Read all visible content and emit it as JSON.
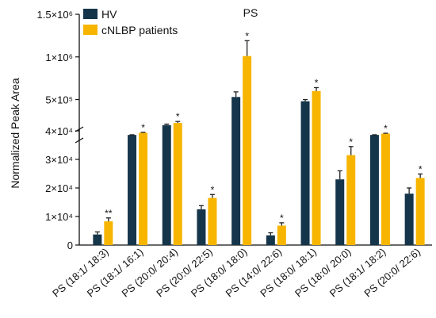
{
  "chart_data": {
    "type": "bar",
    "title": "PS",
    "xlabel": "",
    "ylabel": "Normalized Peak Area",
    "categories": [
      "PS (18:1/ 18:3)",
      "PS (18:1/ 16:1)",
      "PS (20:0/ 20:4)",
      "PS (20:0/ 22:5)",
      "PS (18:0/ 18:0)",
      "PS (14:0/ 22:6)",
      "PS (18:0/ 18:1)",
      "PS (18:0/ 20:0)",
      "PS (18:1/ 18:2)",
      "PS (20:0/ 22:6)"
    ],
    "series": [
      {
        "name": "HV",
        "color": "#15354a",
        "values": [
          3700,
          85000,
          200000,
          12500,
          530000,
          3400,
          480000,
          23000,
          85000,
          18000
        ],
        "errors": [
          900,
          2000,
          12000,
          1300,
          60000,
          900,
          20000,
          3000,
          2000,
          2000
        ]
      },
      {
        "name": "cNLBP patients",
        "color": "#f7b500",
        "values": [
          8300,
          110000,
          225000,
          16500,
          1010000,
          6800,
          600000,
          31500,
          100000,
          23500
        ],
        "errors": [
          1200,
          6000,
          18000,
          1200,
          180000,
          1000,
          40000,
          3000,
          5000,
          1400
        ]
      }
    ],
    "significance": [
      "**",
      "*",
      "*",
      "*",
      "*",
      "*",
      "*",
      "*",
      "*",
      "*"
    ],
    "axis": {
      "lower_range": [
        0,
        40000
      ],
      "lower_ticks": [
        "0",
        "1×10⁴",
        "2×10⁴",
        "3×10⁴",
        "4×10⁴"
      ],
      "upper_range": [
        40000,
        1500000
      ],
      "upper_ticks": [
        "5×10⁵",
        "1×10⁶",
        "1.5×10⁶"
      ],
      "broken": true
    },
    "legend_position": "top-left",
    "grid": false
  }
}
